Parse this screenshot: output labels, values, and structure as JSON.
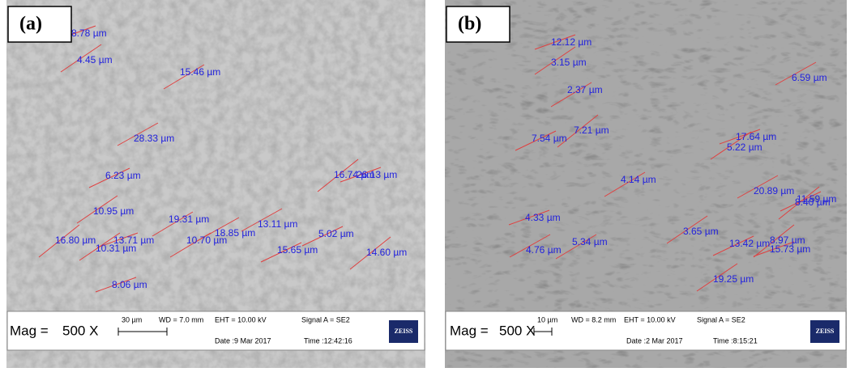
{
  "panels": [
    {
      "label": "(a)",
      "measurements": [
        "8.78 µm",
        "4.45 µm",
        "15.46 µm",
        "28.33 µm",
        "6.23 µm",
        "16.74 µm",
        "26.13 µm",
        "10.95 µm",
        "19.31 µm",
        "13.11 µm",
        "5.02 µm",
        "16.80 µm",
        "13.71 µm",
        "10.31 µm",
        "10.70 µm",
        "18.85 µm",
        "15.65 µm",
        "14.60 µm",
        "8.06 µm"
      ],
      "info": {
        "mag_label": "Mag =",
        "mag": "500 X",
        "scale": "30 µm",
        "wd": "WD = 7.0 mm",
        "eht": "EHT = 10.00 kV",
        "signal": "Signal A = SE2",
        "date": "Date :9 Mar 2017",
        "time": "Time :12:42:16",
        "logo": "ZEISS"
      }
    },
    {
      "label": "(b)",
      "measurements": [
        "12.12 µm",
        "3.15 µm",
        "2.37 µm",
        "6.59 µm",
        "7.54 µm",
        "7.21 µm",
        "17.64 µm",
        "5.22 µm",
        "4.14 µm",
        "20.89 µm",
        "11.59 µm",
        "8.40 µm",
        "4.33 µm",
        "3.65 µm",
        "5.34 µm",
        "4.76 µm",
        "13.42 µm",
        "8.97 µm",
        "15.73 µm",
        "19.25 µm"
      ],
      "info": {
        "mag_label": "Mag =",
        "mag": "500 X",
        "scale": "10 µm",
        "wd": "WD = 8.2 mm",
        "eht": "EHT = 10.00 kV",
        "signal": "Signal A = SE2",
        "date": "Date :2 Mar 2017",
        "time": "Time :8:15:21",
        "logo": "ZEISS"
      }
    }
  ]
}
